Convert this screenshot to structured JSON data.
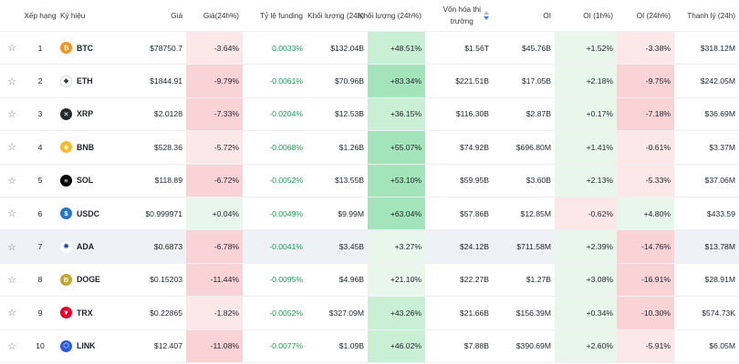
{
  "headers": {
    "rank": "Xếp hạng",
    "symbol": "Ký hiệu",
    "price": "Giá",
    "price_24h": "Giá(24h%)",
    "funding": "Tỷ lệ funding",
    "volume": "Khối lượng (24h)",
    "volume_pct": "Khối lượng (24h%)",
    "mcap_line1": "Vốn hóa thị",
    "mcap_line2": "trường",
    "oi": "OI",
    "oi_1h": "OI (1h%)",
    "oi_24h": "OI (24h%)",
    "liq": "Thanh lý (24h)"
  },
  "colors": {
    "red_light": "#fce8e9",
    "red_mid": "#f9d3d6",
    "green_light": "#e8f6ec",
    "green_mid": "#c9efd5",
    "green_strong": "#a3e4bb",
    "funding_text": "#14a05a"
  },
  "rows": [
    {
      "rank": "1",
      "symbol": "BTC",
      "icon": "bitcoin-icon",
      "icon_color": "#f7931a",
      "icon_glyph": "₿",
      "price": "$78750.7",
      "p24": "-3.64%",
      "p24_level": "red_light",
      "funding": "0.0033%",
      "volume": "$132.04B",
      "volp": "+48.51%",
      "volp_level": "green_mid",
      "mcap": "$1.56T",
      "oi": "$45.76B",
      "oi1": "+1.52%",
      "oi1_level": "green_light",
      "oi24": "-3.38%",
      "oi24_level": "red_light",
      "liq": "$318.12M",
      "highlight": false
    },
    {
      "rank": "2",
      "symbol": "ETH",
      "icon": "ethereum-icon",
      "icon_color": "#ffffff",
      "icon_glyph": "◆",
      "price": "$1844.91",
      "p24": "-9.79%",
      "p24_level": "red_mid",
      "funding": "-0.0061%",
      "volume": "$70.96B",
      "volp": "+83.34%",
      "volp_level": "green_strong",
      "mcap": "$221.51B",
      "oi": "$17.05B",
      "oi1": "+2.18%",
      "oi1_level": "green_light",
      "oi24": "-9.75%",
      "oi24_level": "red_mid",
      "liq": "$242.05M",
      "highlight": false
    },
    {
      "rank": "3",
      "symbol": "XRP",
      "icon": "xrp-icon",
      "icon_color": "#23292f",
      "icon_glyph": "✕",
      "price": "$2.0128",
      "p24": "-7.33%",
      "p24_level": "red_mid",
      "funding": "-0.0204%",
      "volume": "$12.53B",
      "volp": "+36.15%",
      "volp_level": "green_mid",
      "mcap": "$116.30B",
      "oi": "$2.87B",
      "oi1": "+0.17%",
      "oi1_level": "green_light",
      "oi24": "-7.18%",
      "oi24_level": "red_mid",
      "liq": "$36.69M",
      "highlight": false
    },
    {
      "rank": "4",
      "symbol": "BNB",
      "icon": "bnb-icon",
      "icon_color": "#f3ba2f",
      "icon_glyph": "◈",
      "price": "$528.36",
      "p24": "-5.72%",
      "p24_level": "red_light",
      "funding": "-0.0068%",
      "volume": "$1.26B",
      "volp": "+55.07%",
      "volp_level": "green_strong",
      "mcap": "$74.92B",
      "oi": "$696.80M",
      "oi1": "+1.41%",
      "oi1_level": "green_light",
      "oi24": "-0.61%",
      "oi24_level": "red_light",
      "liq": "$3.37M",
      "highlight": false
    },
    {
      "rank": "5",
      "symbol": "SOL",
      "icon": "solana-icon",
      "icon_color": "#000000",
      "icon_glyph": "≡",
      "price": "$118.89",
      "p24": "-6.72%",
      "p24_level": "red_mid",
      "funding": "-0.0052%",
      "volume": "$13.55B",
      "volp": "+53.10%",
      "volp_level": "green_strong",
      "mcap": "$59.95B",
      "oi": "$3.60B",
      "oi1": "+2.13%",
      "oi1_level": "green_light",
      "oi24": "-5.33%",
      "oi24_level": "red_light",
      "liq": "$37.06M",
      "highlight": false
    },
    {
      "rank": "6",
      "symbol": "USDC",
      "icon": "usdc-icon",
      "icon_color": "#2775ca",
      "icon_glyph": "$",
      "price": "$0.999971",
      "p24": "+0.04%",
      "p24_level": "green_light",
      "funding": "-0.0049%",
      "volume": "$9.99M",
      "volp": "+63.04%",
      "volp_level": "green_strong",
      "mcap": "$57.86B",
      "oi": "$12.85M",
      "oi1": "-0.62%",
      "oi1_level": "red_light",
      "oi24": "+4.80%",
      "oi24_level": "green_light",
      "liq": "$433.59",
      "highlight": false
    },
    {
      "rank": "7",
      "symbol": "ADA",
      "icon": "cardano-icon",
      "icon_color": "#ffffff",
      "icon_glyph": "✺",
      "price": "$0.6873",
      "p24": "-6.78%",
      "p24_level": "red_mid",
      "funding": "-0.0041%",
      "volume": "$3.45B",
      "volp": "+3.27%",
      "volp_level": "green_light",
      "mcap": "$24.12B",
      "oi": "$711.58M",
      "oi1": "+2.39%",
      "oi1_level": "green_light",
      "oi24": "-14.76%",
      "oi24_level": "red_mid",
      "liq": "$13.78M",
      "highlight": true
    },
    {
      "rank": "8",
      "symbol": "DOGE",
      "icon": "dogecoin-icon",
      "icon_color": "#c2a633",
      "icon_glyph": "Ð",
      "price": "$0.15203",
      "p24": "-11.44%",
      "p24_level": "red_mid",
      "funding": "-0.0095%",
      "volume": "$4.96B",
      "volp": "+21.10%",
      "volp_level": "green_light",
      "mcap": "$22.27B",
      "oi": "$1.27B",
      "oi1": "+3.08%",
      "oi1_level": "green_light",
      "oi24": "-16.91%",
      "oi24_level": "red_mid",
      "liq": "$28.91M",
      "highlight": false
    },
    {
      "rank": "9",
      "symbol": "TRX",
      "icon": "tron-icon",
      "icon_color": "#eb0029",
      "icon_glyph": "▼",
      "price": "$0.22865",
      "p24": "-1.82%",
      "p24_level": "red_light",
      "funding": "-0.0052%",
      "volume": "$327.09M",
      "volp": "+43.26%",
      "volp_level": "green_mid",
      "mcap": "$21.66B",
      "oi": "$156.39M",
      "oi1": "+0.34%",
      "oi1_level": "green_light",
      "oi24": "-10.30%",
      "oi24_level": "red_mid",
      "liq": "$574.73K",
      "highlight": false
    },
    {
      "rank": "10",
      "symbol": "LINK",
      "icon": "chainlink-icon",
      "icon_color": "#2a5ada",
      "icon_glyph": "⬡",
      "price": "$12.407",
      "p24": "-11.08%",
      "p24_level": "red_mid",
      "funding": "-0.0077%",
      "volume": "$1.09B",
      "volp": "+46.02%",
      "volp_level": "green_mid",
      "mcap": "$7.88B",
      "oi": "$390.69M",
      "oi1": "+2.60%",
      "oi1_level": "green_light",
      "oi24": "-5.91%",
      "oi24_level": "red_light",
      "liq": "$6.05M",
      "highlight": false
    }
  ]
}
